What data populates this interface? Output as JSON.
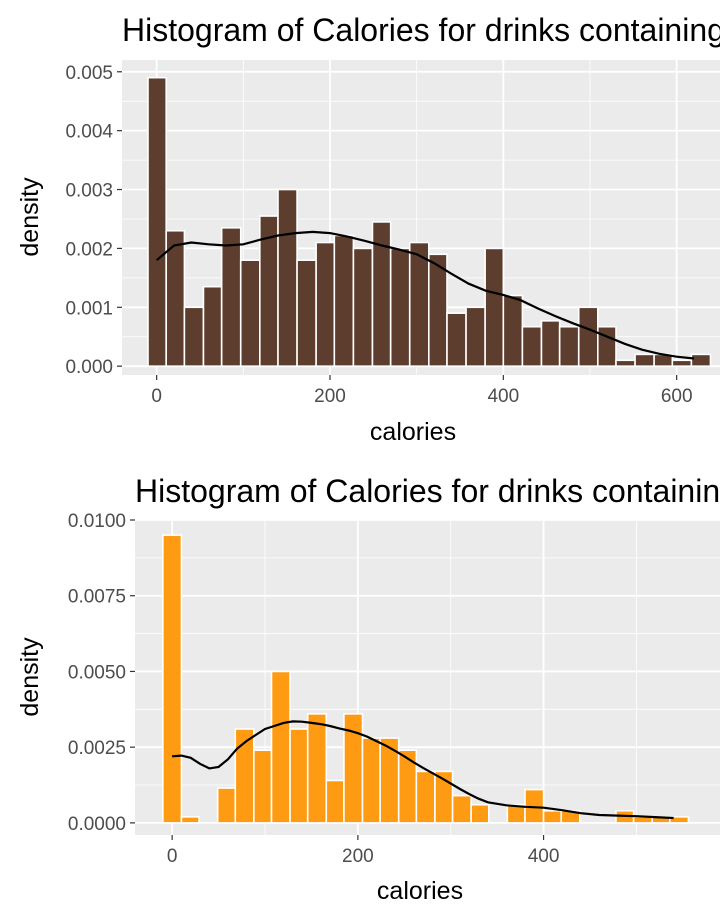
{
  "chart_data": [
    {
      "type": "bar",
      "title": "Histogram of Calories for drinks containing coffee",
      "xlabel": "calories",
      "ylabel": "density",
      "xlim": [
        -40,
        650
      ],
      "ylim": [
        -0.00015,
        0.0052
      ],
      "x_ticks": [
        0,
        200,
        400,
        600
      ],
      "x_tick_labels": [
        "0",
        "200",
        "400",
        "600"
      ],
      "y_ticks": [
        0,
        0.001,
        0.002,
        0.003,
        0.004,
        0.005
      ],
      "y_tick_labels": [
        "0.000",
        "0.001",
        "0.002",
        "0.003",
        "0.004",
        "0.005"
      ],
      "bar_color": "#5c3d2e",
      "bar_outline": "#ffffff",
      "grid": true,
      "bins": [
        {
          "x0": -10,
          "x1": 11,
          "y": 0.0049
        },
        {
          "x0": 11,
          "x1": 32,
          "y": 0.0023
        },
        {
          "x0": 32,
          "x1": 54,
          "y": 0.001
        },
        {
          "x0": 54,
          "x1": 75,
          "y": 0.00135
        },
        {
          "x0": 75,
          "x1": 97,
          "y": 0.00235
        },
        {
          "x0": 97,
          "x1": 119,
          "y": 0.0018
        },
        {
          "x0": 119,
          "x1": 140,
          "y": 0.00255
        },
        {
          "x0": 140,
          "x1": 162,
          "y": 0.003
        },
        {
          "x0": 162,
          "x1": 184,
          "y": 0.0018
        },
        {
          "x0": 184,
          "x1": 205,
          "y": 0.0021
        },
        {
          "x0": 205,
          "x1": 227,
          "y": 0.00222
        },
        {
          "x0": 227,
          "x1": 249,
          "y": 0.002
        },
        {
          "x0": 249,
          "x1": 270,
          "y": 0.00245
        },
        {
          "x0": 270,
          "x1": 292,
          "y": 0.002
        },
        {
          "x0": 292,
          "x1": 314,
          "y": 0.0021
        },
        {
          "x0": 314,
          "x1": 335,
          "y": 0.0019
        },
        {
          "x0": 335,
          "x1": 357,
          "y": 0.0009
        },
        {
          "x0": 357,
          "x1": 379,
          "y": 0.001
        },
        {
          "x0": 379,
          "x1": 400,
          "y": 0.002
        },
        {
          "x0": 400,
          "x1": 422,
          "y": 0.0012
        },
        {
          "x0": 422,
          "x1": 444,
          "y": 0.00067
        },
        {
          "x0": 444,
          "x1": 465,
          "y": 0.00077
        },
        {
          "x0": 465,
          "x1": 487,
          "y": 0.00067
        },
        {
          "x0": 487,
          "x1": 509,
          "y": 0.001
        },
        {
          "x0": 509,
          "x1": 530,
          "y": 0.00067
        },
        {
          "x0": 530,
          "x1": 552,
          "y": 0.0001
        },
        {
          "x0": 552,
          "x1": 574,
          "y": 0.0002
        },
        {
          "x0": 574,
          "x1": 595,
          "y": 0.0002
        },
        {
          "x0": 595,
          "x1": 617,
          "y": 0.0001
        },
        {
          "x0": 617,
          "x1": 639,
          "y": 0.0002
        }
      ],
      "density_curve": {
        "color": "#000000",
        "x": [
          0,
          20,
          40,
          60,
          80,
          100,
          120,
          140,
          160,
          180,
          200,
          220,
          240,
          260,
          280,
          300,
          320,
          340,
          360,
          380,
          400,
          420,
          440,
          460,
          480,
          500,
          520,
          540,
          560,
          580,
          600,
          620
        ],
        "y": [
          0.0018,
          0.00205,
          0.0021,
          0.00207,
          0.00205,
          0.00207,
          0.00215,
          0.00222,
          0.00226,
          0.00228,
          0.00226,
          0.0022,
          0.00213,
          0.00205,
          0.00198,
          0.0019,
          0.00175,
          0.00157,
          0.0014,
          0.00128,
          0.00121,
          0.00112,
          0.00098,
          0.00085,
          0.00073,
          0.00062,
          0.0005,
          0.00038,
          0.00028,
          0.00021,
          0.00016,
          0.00013
        ]
      }
    },
    {
      "type": "bar",
      "title": "Histogram of Calories for drinks containing tea",
      "xlabel": "calories",
      "ylabel": "density",
      "xlim": [
        -40,
        590
      ],
      "ylim": [
        -0.0004,
        0.01
      ],
      "x_ticks": [
        0,
        200,
        400
      ],
      "x_tick_labels": [
        "0",
        "200",
        "400"
      ],
      "y_ticks": [
        0,
        0.0025,
        0.005,
        0.0075,
        0.01
      ],
      "y_tick_labels": [
        "0.0000",
        "0.0025",
        "0.0050",
        "0.0075",
        "0.0100"
      ],
      "bar_color": "#ff9b12",
      "bar_outline": "#ffffff",
      "grid": true,
      "bins": [
        {
          "x0": -10,
          "x1": 10,
          "y": 0.0095
        },
        {
          "x0": 10,
          "x1": 29,
          "y": 0.0002
        },
        {
          "x0": 29,
          "x1": 49,
          "y": 0.0
        },
        {
          "x0": 49,
          "x1": 68,
          "y": 0.00115
        },
        {
          "x0": 68,
          "x1": 88,
          "y": 0.0031
        },
        {
          "x0": 88,
          "x1": 107,
          "y": 0.0024
        },
        {
          "x0": 107,
          "x1": 127,
          "y": 0.005
        },
        {
          "x0": 127,
          "x1": 146,
          "y": 0.0031
        },
        {
          "x0": 146,
          "x1": 166,
          "y": 0.0036
        },
        {
          "x0": 166,
          "x1": 185,
          "y": 0.0014
        },
        {
          "x0": 185,
          "x1": 205,
          "y": 0.0036
        },
        {
          "x0": 205,
          "x1": 224,
          "y": 0.0028
        },
        {
          "x0": 224,
          "x1": 244,
          "y": 0.0028
        },
        {
          "x0": 244,
          "x1": 263,
          "y": 0.0024
        },
        {
          "x0": 263,
          "x1": 283,
          "y": 0.0017
        },
        {
          "x0": 283,
          "x1": 302,
          "y": 0.0017
        },
        {
          "x0": 302,
          "x1": 322,
          "y": 0.0009
        },
        {
          "x0": 322,
          "x1": 341,
          "y": 0.0006
        },
        {
          "x0": 341,
          "x1": 361,
          "y": 0.0
        },
        {
          "x0": 361,
          "x1": 380,
          "y": 0.0006
        },
        {
          "x0": 380,
          "x1": 400,
          "y": 0.0011
        },
        {
          "x0": 400,
          "x1": 419,
          "y": 0.0004
        },
        {
          "x0": 419,
          "x1": 439,
          "y": 0.0004
        },
        {
          "x0": 439,
          "x1": 458,
          "y": 0.0
        },
        {
          "x0": 458,
          "x1": 478,
          "y": 0.0
        },
        {
          "x0": 478,
          "x1": 497,
          "y": 0.0004
        },
        {
          "x0": 497,
          "x1": 517,
          "y": 0.0002
        },
        {
          "x0": 517,
          "x1": 536,
          "y": 0.0002
        },
        {
          "x0": 536,
          "x1": 556,
          "y": 0.0002
        }
      ],
      "density_curve": {
        "color": "#000000",
        "x": [
          0,
          10,
          20,
          30,
          40,
          50,
          60,
          70,
          80,
          90,
          100,
          110,
          120,
          130,
          140,
          150,
          160,
          170,
          180,
          190,
          200,
          210,
          220,
          230,
          240,
          250,
          260,
          270,
          280,
          290,
          300,
          310,
          320,
          330,
          340,
          360,
          380,
          400,
          420,
          440,
          460,
          480,
          500,
          520,
          540
        ],
        "y": [
          0.0022,
          0.00222,
          0.00215,
          0.00195,
          0.0018,
          0.00185,
          0.0021,
          0.00245,
          0.0027,
          0.0029,
          0.0031,
          0.0032,
          0.0033,
          0.00335,
          0.00334,
          0.0033,
          0.00326,
          0.0032,
          0.00312,
          0.00305,
          0.00296,
          0.00285,
          0.0027,
          0.00255,
          0.00238,
          0.0022,
          0.002,
          0.00182,
          0.00165,
          0.00148,
          0.0013,
          0.00112,
          0.00095,
          0.0008,
          0.00068,
          0.00058,
          0.00053,
          0.0005,
          0.00042,
          0.00032,
          0.00026,
          0.00024,
          0.00022,
          0.00019,
          0.00016
        ]
      }
    }
  ]
}
